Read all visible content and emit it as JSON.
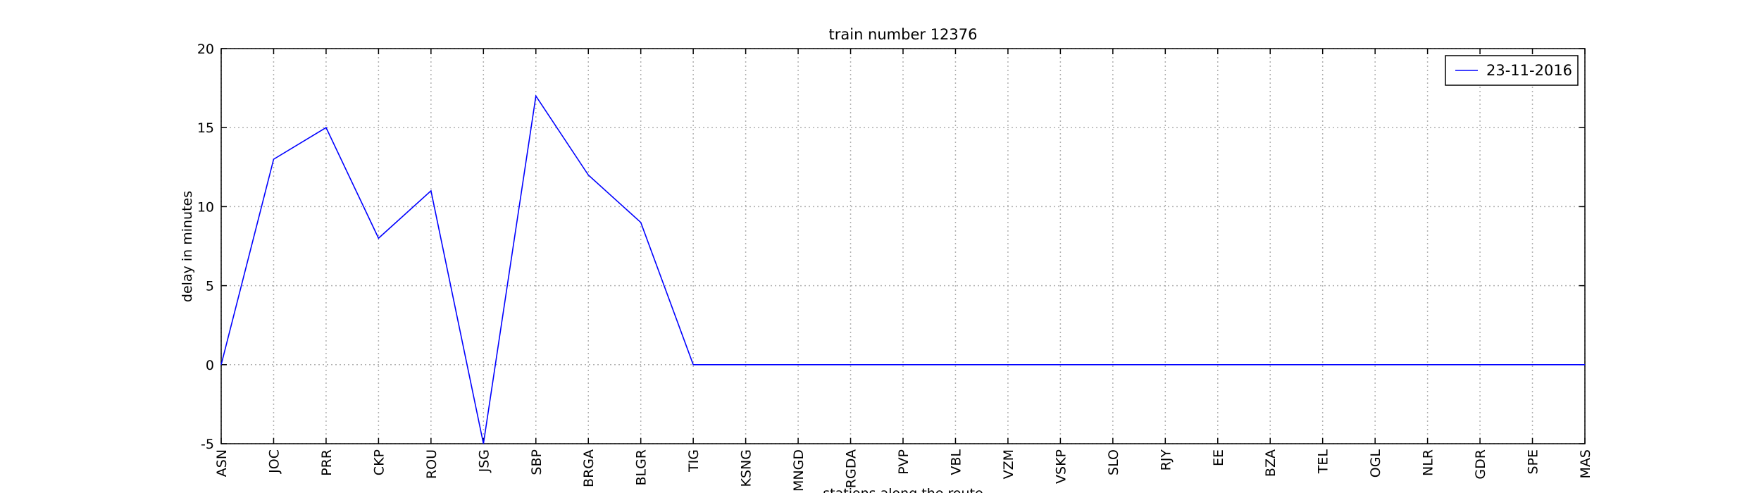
{
  "chart_data": {
    "type": "line",
    "title": "train number 12376",
    "x_label": "stations along the route",
    "y_label": "delay in minutes",
    "categories": [
      "ASN",
      "JOC",
      "PRR",
      "CKP",
      "ROU",
      "JSG",
      "SBP",
      "BRGA",
      "BLGR",
      "TIG",
      "KSNG",
      "MNGD",
      "RGDA",
      "PVP",
      "VBL",
      "VZM",
      "VSKP",
      "SLO",
      "RJY",
      "EE",
      "BZA",
      "TEL",
      "OGL",
      "NLR",
      "GDR",
      "SPE",
      "MAS"
    ],
    "series": [
      {
        "name": "23-11-2016",
        "color": "#0000ff",
        "values": [
          0,
          13,
          15,
          8,
          11,
          -5,
          17,
          12,
          9,
          0,
          0,
          0,
          0,
          0,
          0,
          0,
          0,
          0,
          0,
          0,
          0,
          0,
          0,
          0,
          0,
          0,
          0
        ]
      }
    ],
    "ylim": [
      -5,
      20
    ],
    "yticks": [
      -5,
      0,
      5,
      10,
      15,
      20
    ],
    "grid": true,
    "legend": "upper right"
  }
}
